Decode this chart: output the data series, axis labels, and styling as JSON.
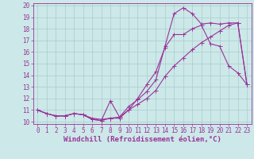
{
  "bg_color": "#cce8e8",
  "line_color": "#993399",
  "grid_color": "#aacccc",
  "xlabel": "Windchill (Refroidissement éolien,°C)",
  "xlabel_fontsize": 6.5,
  "tick_fontsize": 5.5,
  "xlim": [
    -0.5,
    23.5
  ],
  "ylim": [
    9.8,
    20.2
  ],
  "xticks": [
    0,
    1,
    2,
    3,
    4,
    5,
    6,
    7,
    8,
    9,
    10,
    11,
    12,
    13,
    14,
    15,
    16,
    17,
    18,
    19,
    20,
    21,
    22,
    23
  ],
  "yticks": [
    10,
    11,
    12,
    13,
    14,
    15,
    16,
    17,
    18,
    19,
    20
  ],
  "line1_x": [
    0,
    1,
    2,
    3,
    4,
    5,
    6,
    7,
    8,
    9,
    10,
    11,
    12,
    13,
    14,
    15,
    16,
    17,
    18,
    19,
    20,
    21,
    22,
    23
  ],
  "line1_y": [
    11.0,
    10.7,
    10.5,
    10.5,
    10.7,
    10.6,
    10.2,
    10.1,
    11.8,
    10.4,
    11.3,
    11.9,
    12.6,
    13.6,
    16.5,
    19.3,
    19.8,
    19.3,
    18.4,
    18.5,
    18.4,
    18.5,
    18.5,
    13.2
  ],
  "line2_x": [
    0,
    1,
    2,
    3,
    4,
    5,
    6,
    7,
    8,
    9,
    10,
    11,
    12,
    13,
    14,
    15,
    16,
    17,
    18,
    19,
    20,
    21,
    22,
    23
  ],
  "line2_y": [
    11.0,
    10.7,
    10.5,
    10.5,
    10.7,
    10.6,
    10.2,
    10.1,
    10.3,
    10.3,
    11.0,
    12.0,
    13.2,
    14.3,
    16.4,
    17.5,
    17.5,
    18.0,
    18.3,
    16.7,
    16.5,
    14.8,
    14.2,
    13.2
  ],
  "line3_x": [
    0,
    1,
    2,
    3,
    4,
    5,
    6,
    7,
    8,
    9,
    10,
    11,
    12,
    13,
    14,
    15,
    16,
    17,
    18,
    19,
    20,
    21,
    22,
    23
  ],
  "line3_y": [
    11.0,
    10.7,
    10.5,
    10.5,
    10.7,
    10.6,
    10.3,
    10.2,
    10.3,
    10.4,
    11.0,
    11.5,
    12.0,
    12.7,
    13.9,
    14.8,
    15.5,
    16.2,
    16.8,
    17.3,
    17.8,
    18.3,
    18.5,
    13.2
  ]
}
